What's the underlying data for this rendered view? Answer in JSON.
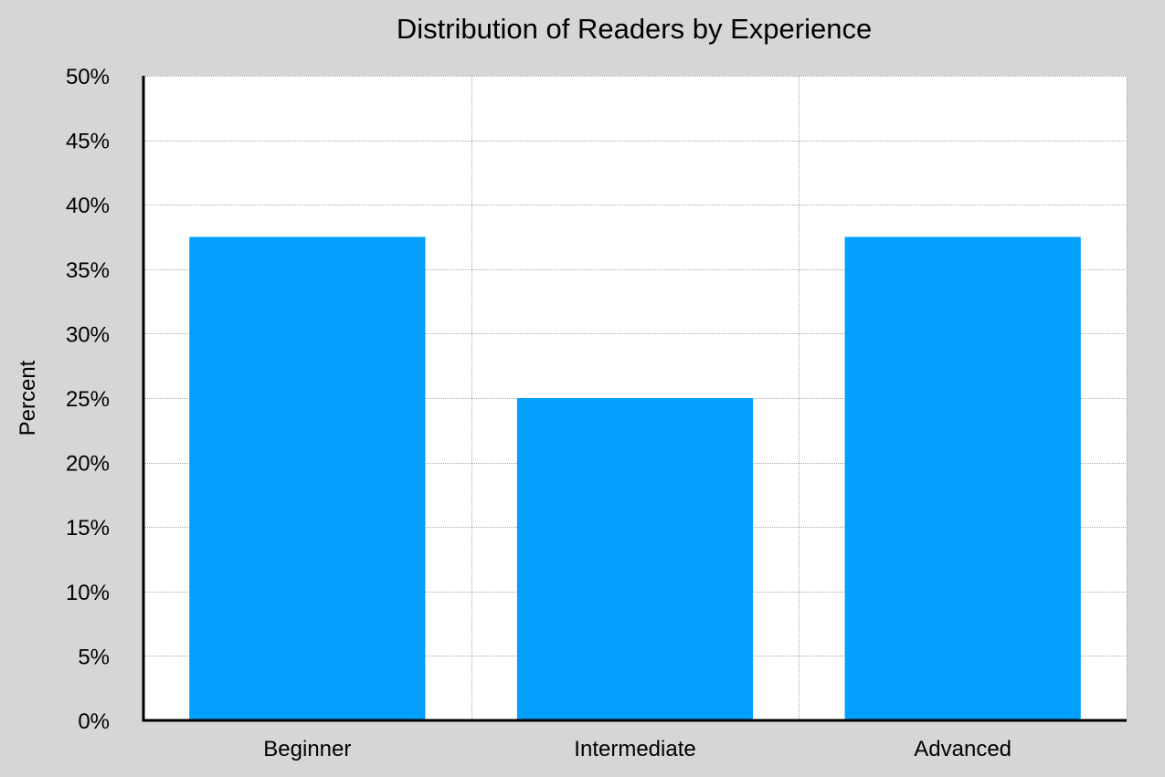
{
  "chart_data": {
    "type": "bar",
    "title": "Distribution of Readers by Experience",
    "xlabel": "",
    "ylabel": "Percent",
    "categories": [
      "Beginner",
      "Intermediate",
      "Advanced"
    ],
    "values": [
      37.5,
      25,
      37.5
    ],
    "ylim": [
      0,
      50
    ],
    "yticks": [
      0,
      5,
      10,
      15,
      20,
      25,
      30,
      35,
      40,
      45,
      50
    ],
    "ytick_labels": [
      "0%",
      "5%",
      "10%",
      "15%",
      "20%",
      "25%",
      "30%",
      "35%",
      "40%",
      "45%",
      "50%"
    ],
    "grid": true,
    "legend": "none",
    "colors": {
      "bar": "#029ffd",
      "plot_background": "#ffffff",
      "figure_background": "#d6d6d6",
      "grid": "#a9a9a9",
      "axis": "#000000"
    }
  }
}
